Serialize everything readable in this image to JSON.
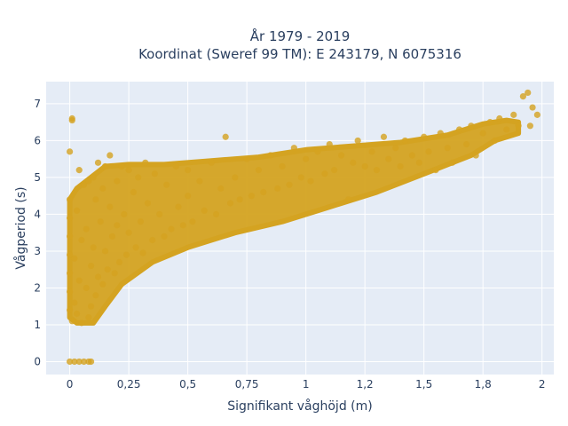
{
  "chart_data": {
    "type": "scatter",
    "title_line1": "År 1979 - 2019",
    "title_line2": "Koordinat (Sweref 99 TM): E 243179, N 6075316",
    "xlabel": "Signifikant våghöjd (m)",
    "ylabel": "Vågperiod (s)",
    "xlim": [
      -0.1,
      2.05
    ],
    "ylim": [
      -0.35,
      7.6
    ],
    "x_ticks": [
      {
        "value": 0,
        "label": "0"
      },
      {
        "value": 0.25,
        "label": "0,25"
      },
      {
        "value": 0.5,
        "label": "0,5"
      },
      {
        "value": 0.75,
        "label": "0,75"
      },
      {
        "value": 1,
        "label": "1"
      },
      {
        "value": 1.25,
        "label": "1,2"
      },
      {
        "value": 1.5,
        "label": "1,5"
      },
      {
        "value": 1.75,
        "label": "1,8"
      },
      {
        "value": 2,
        "label": "2"
      }
    ],
    "y_ticks": [
      {
        "value": 0,
        "label": "0"
      },
      {
        "value": 1,
        "label": "1"
      },
      {
        "value": 2,
        "label": "2"
      },
      {
        "value": 3,
        "label": "3"
      },
      {
        "value": 4,
        "label": "4"
      },
      {
        "value": 5,
        "label": "5"
      },
      {
        "value": 6,
        "label": "6"
      },
      {
        "value": 7,
        "label": "7"
      }
    ],
    "grid": true,
    "marker_color": "#d4a321",
    "background_color": "#e5ecf6",
    "points": [
      [
        0.0,
        0.0
      ],
      [
        0.02,
        0.0
      ],
      [
        0.04,
        0.0
      ],
      [
        0.06,
        0.0
      ],
      [
        0.08,
        0.0
      ],
      [
        0.09,
        0.0
      ],
      [
        0.0,
        1.4
      ],
      [
        0.0,
        1.9
      ],
      [
        0.0,
        2.4
      ],
      [
        0.0,
        2.9
      ],
      [
        0.0,
        3.4
      ],
      [
        0.0,
        3.9
      ],
      [
        0.0,
        4.4
      ],
      [
        0.0,
        5.7
      ],
      [
        0.01,
        6.6
      ],
      [
        0.01,
        6.55
      ],
      [
        0.01,
        1.1
      ],
      [
        0.02,
        1.6
      ],
      [
        0.02,
        2.8
      ],
      [
        0.03,
        4.1
      ],
      [
        0.04,
        5.2
      ],
      [
        0.03,
        1.3
      ],
      [
        0.04,
        2.2
      ],
      [
        0.05,
        3.3
      ],
      [
        0.05,
        1.05
      ],
      [
        0.06,
        4.8
      ],
      [
        0.07,
        2.0
      ],
      [
        0.07,
        3.6
      ],
      [
        0.08,
        1.2
      ],
      [
        0.08,
        4.9
      ],
      [
        0.09,
        2.6
      ],
      [
        0.09,
        1.5
      ],
      [
        0.1,
        5.0
      ],
      [
        0.1,
        3.1
      ],
      [
        0.11,
        1.8
      ],
      [
        0.11,
        4.4
      ],
      [
        0.12,
        2.3
      ],
      [
        0.12,
        5.4
      ],
      [
        0.13,
        3.8
      ],
      [
        0.14,
        2.1
      ],
      [
        0.14,
        4.7
      ],
      [
        0.15,
        5.3
      ],
      [
        0.15,
        3.0
      ],
      [
        0.16,
        2.5
      ],
      [
        0.17,
        4.2
      ],
      [
        0.17,
        5.6
      ],
      [
        0.18,
        3.4
      ],
      [
        0.19,
        2.4
      ],
      [
        0.2,
        4.9
      ],
      [
        0.2,
        3.7
      ],
      [
        0.21,
        2.7
      ],
      [
        0.22,
        5.3
      ],
      [
        0.23,
        4.0
      ],
      [
        0.24,
        2.9
      ],
      [
        0.25,
        5.2
      ],
      [
        0.25,
        3.5
      ],
      [
        0.27,
        4.6
      ],
      [
        0.28,
        3.1
      ],
      [
        0.29,
        5.0
      ],
      [
        0.3,
        3.8
      ],
      [
        0.31,
        2.95
      ],
      [
        0.32,
        5.4
      ],
      [
        0.33,
        4.3
      ],
      [
        0.35,
        3.3
      ],
      [
        0.36,
        5.1
      ],
      [
        0.38,
        4.0
      ],
      [
        0.4,
        3.4
      ],
      [
        0.41,
        4.8
      ],
      [
        0.43,
        3.6
      ],
      [
        0.45,
        5.3
      ],
      [
        0.46,
        4.2
      ],
      [
        0.48,
        3.7
      ],
      [
        0.5,
        5.2
      ],
      [
        0.5,
        4.5
      ],
      [
        0.52,
        3.8
      ],
      [
        0.55,
        4.9
      ],
      [
        0.57,
        4.1
      ],
      [
        0.6,
        5.4
      ],
      [
        0.62,
        4.0
      ],
      [
        0.64,
        4.7
      ],
      [
        0.66,
        6.1
      ],
      [
        0.68,
        4.3
      ],
      [
        0.7,
        5.0
      ],
      [
        0.72,
        4.4
      ],
      [
        0.75,
        5.5
      ],
      [
        0.77,
        4.5
      ],
      [
        0.8,
        5.2
      ],
      [
        0.82,
        4.6
      ],
      [
        0.85,
        5.6
      ],
      [
        0.88,
        4.7
      ],
      [
        0.9,
        5.3
      ],
      [
        0.93,
        4.8
      ],
      [
        0.95,
        5.8
      ],
      [
        0.98,
        5.0
      ],
      [
        1.0,
        5.5
      ],
      [
        1.02,
        4.9
      ],
      [
        1.05,
        5.7
      ],
      [
        1.08,
        5.1
      ],
      [
        1.1,
        5.9
      ],
      [
        1.12,
        5.2
      ],
      [
        1.15,
        5.6
      ],
      [
        1.18,
        4.4
      ],
      [
        1.2,
        5.4
      ],
      [
        1.22,
        6.0
      ],
      [
        1.25,
        5.3
      ],
      [
        1.28,
        5.7
      ],
      [
        1.3,
        5.2
      ],
      [
        1.33,
        6.1
      ],
      [
        1.35,
        5.5
      ],
      [
        1.38,
        5.8
      ],
      [
        1.4,
        5.3
      ],
      [
        1.42,
        6.0
      ],
      [
        1.45,
        5.6
      ],
      [
        1.48,
        5.4
      ],
      [
        1.5,
        6.1
      ],
      [
        1.52,
        5.7
      ],
      [
        1.55,
        5.2
      ],
      [
        1.57,
        6.2
      ],
      [
        1.6,
        5.8
      ],
      [
        1.62,
        5.4
      ],
      [
        1.65,
        6.3
      ],
      [
        1.68,
        5.9
      ],
      [
        1.7,
        6.4
      ],
      [
        1.72,
        5.6
      ],
      [
        1.75,
        6.2
      ],
      [
        1.78,
        6.5
      ],
      [
        1.8,
        6.0
      ],
      [
        1.82,
        6.6
      ],
      [
        1.85,
        6.3
      ],
      [
        1.88,
        6.7
      ],
      [
        1.9,
        6.4
      ],
      [
        1.92,
        7.2
      ],
      [
        1.94,
        7.3
      ],
      [
        1.96,
        6.9
      ],
      [
        1.98,
        6.7
      ],
      [
        1.95,
        6.4
      ]
    ]
  }
}
